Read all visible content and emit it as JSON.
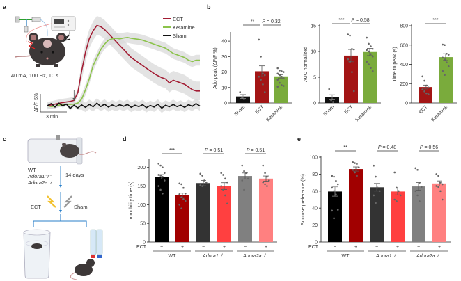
{
  "panels": {
    "a": {
      "letter": "a",
      "stim_label": "40 mA, 100 Hz, 10 s",
      "scale_y_label": "ΔF/F 5%",
      "scale_x_label": "3 min",
      "legend": [
        {
          "name": "ECT",
          "color": "#a31c33"
        },
        {
          "name": "Ketamine",
          "color": "#8bc34a"
        },
        {
          "name": "Sham",
          "color": "#111111"
        }
      ]
    },
    "b": {
      "letter": "b"
    },
    "c": {
      "letter": "c",
      "genotypes": [
        "WT",
        "Adora1⁻/⁻",
        "Adora2a⁻/⁻"
      ],
      "duration": "14 days",
      "ect_label": "ECT",
      "sham_label": "Sham"
    },
    "d": {
      "letter": "d"
    },
    "e": {
      "letter": "e"
    }
  },
  "chart_data": [
    {
      "id": "a",
      "type": "line",
      "title": "",
      "xlabel": "3 min (scale bar)",
      "ylabel": "ΔF/F 5% (scale bar)",
      "stimulus_marker": "arrow at stimulation onset",
      "series": [
        {
          "name": "ECT",
          "color": "#a31c33",
          "y": [
            0,
            0.3,
            0.6,
            0.9,
            1.2,
            1.4,
            1.6,
            2,
            5,
            13,
            20,
            25,
            28,
            30,
            29.5,
            28.5,
            27,
            25.5,
            24,
            22.5,
            21,
            19.5,
            18,
            17,
            16,
            15,
            14,
            13,
            12,
            11.2,
            10.5,
            10,
            8.5,
            9.5,
            9,
            8.5,
            8,
            7,
            6,
            5.5,
            5.5
          ]
        },
        {
          "name": "Ketamine",
          "color": "#8bc34a",
          "y": [
            0,
            -0.3,
            -0.2,
            0.2,
            0.5,
            0.6,
            0.5,
            0.6,
            1,
            2.5,
            6,
            10,
            15,
            18,
            21,
            23,
            24.5,
            25,
            25.2,
            25,
            25.3,
            25.5,
            25.2,
            25,
            24.8,
            24.5,
            24,
            23.5,
            23,
            22.5,
            22,
            21.5,
            20.5,
            19.5,
            19,
            18.5,
            18,
            17,
            16.5,
            17,
            17
          ]
        },
        {
          "name": "Sham",
          "color": "#111111",
          "y": [
            0,
            0.8,
            -0.5,
            1,
            0,
            0.6,
            -1,
            0.2,
            -0.8,
            0.3,
            -0.6,
            0.5,
            -0.4,
            1,
            -0.3,
            0.6,
            -0.5,
            0.3,
            -0.3,
            0.4,
            -0.2,
            0.5,
            -0.6,
            0.2,
            -0.3,
            0.4,
            -0.7,
            0.1,
            -0.5,
            0.6,
            -0.9,
            0.2,
            -0.4,
            0.5,
            -0.3,
            0.2,
            -0.6,
            0.4,
            -0.2,
            0.8,
            -0.1
          ]
        }
      ]
    },
    {
      "id": "b1",
      "type": "bar",
      "ylabel": "Ado peak (ΔF/F %)",
      "ylim": [
        0,
        45
      ],
      "yticks": [
        0,
        10,
        20,
        30,
        40
      ],
      "categories": [
        "Sham",
        "ECT",
        "Ketamine"
      ],
      "colors": [
        "#111111",
        "#a31515",
        "#7aab3c"
      ],
      "values": [
        4.2,
        20.5,
        17.2
      ],
      "sem": [
        1.3,
        3.5,
        1.1
      ],
      "points": [
        [
          7,
          3.5,
          2.5
        ],
        [
          41,
          30,
          19,
          18,
          17,
          15,
          12,
          7
        ],
        [
          22.5,
          21,
          20.5,
          20,
          19,
          18,
          17,
          16,
          15,
          13,
          11.5,
          11,
          10.5
        ]
      ],
      "significance": [
        {
          "pair": [
            "Sham",
            "ECT"
          ],
          "label": "**"
        },
        {
          "pair": [
            "ECT",
            "Ketamine"
          ],
          "label": "P = 0.32"
        }
      ]
    },
    {
      "id": "b2",
      "type": "bar",
      "ylabel": "AUC normalized",
      "ylim": [
        0,
        15
      ],
      "yticks": [
        0,
        5,
        10,
        15
      ],
      "categories": [
        "Sham",
        "ECT",
        "Ketamine"
      ],
      "colors": [
        "#111111",
        "#a31515",
        "#7aab3c"
      ],
      "values": [
        1.1,
        9.2,
        9.9
      ],
      "sem": [
        0.5,
        1.2,
        0.7
      ],
      "points": [
        [
          2.7,
          0.5,
          0.2
        ],
        [
          13.3,
          13.1,
          10.5,
          10.4,
          8.5,
          8,
          6,
          2.3
        ],
        [
          12.7,
          11.5,
          11,
          10.5,
          10.3,
          10,
          9.5,
          9,
          8,
          7.5,
          6.8,
          6.2
        ]
      ],
      "significance": [
        {
          "pair": [
            "Sham",
            "ECT"
          ],
          "label": "***"
        },
        {
          "pair": [
            "ECT",
            "Ketamine"
          ],
          "label": "P = 0.58"
        }
      ]
    },
    {
      "id": "b3",
      "type": "bar",
      "ylabel": "Time to peak (s)",
      "ylim": [
        0,
        800
      ],
      "yticks": [
        0,
        200,
        400,
        600,
        800
      ],
      "categories": [
        "ECT",
        "Ketamine"
      ],
      "colors": [
        "#a31515",
        "#7aab3c"
      ],
      "values": [
        165,
        475
      ],
      "sem": [
        20,
        35
      ],
      "points": [
        [
          275,
          230,
          180,
          160,
          140,
          120,
          100,
          90
        ],
        [
          605,
          600,
          510,
          500,
          470,
          450,
          420,
          380,
          330,
          290
        ]
      ],
      "significance": [
        {
          "pair": [
            "ECT",
            "Ketamine"
          ],
          "label": "***"
        }
      ]
    },
    {
      "id": "d",
      "type": "bar",
      "ylabel": "Immobility time (s)",
      "ylim": [
        0,
        220
      ],
      "yticks": [
        0,
        50,
        100,
        150,
        200
      ],
      "x_row_label": "ECT",
      "categories": [
        "−",
        "+",
        "−",
        "+",
        "−",
        "+"
      ],
      "groups": [
        "WT",
        "Adora1⁻/⁻",
        "Adora2a⁻/⁻"
      ],
      "colors": [
        "#000000",
        "#a10000",
        "#333333",
        "#ff4040",
        "#808080",
        "#ff8080"
      ],
      "values": [
        175,
        125,
        158,
        150,
        177,
        170
      ],
      "sem": [
        6,
        6,
        7,
        9,
        8,
        7
      ],
      "points": [
        [
          210,
          205,
          200,
          185,
          180,
          178,
          175,
          165,
          150,
          140,
          130
        ],
        [
          157,
          155,
          145,
          130,
          128,
          120,
          115,
          110,
          100,
          90
        ],
        [
          183,
          178,
          165,
          160,
          152,
          150
        ],
        [
          185,
          180,
          170,
          160,
          150,
          140,
          125,
          103
        ],
        [
          205,
          190,
          185,
          170,
          165,
          140
        ],
        [
          205,
          185,
          175,
          165,
          160,
          155,
          150
        ]
      ],
      "significance": [
        {
          "pair": [
            0,
            1
          ],
          "label": "***"
        },
        {
          "pair": [
            2,
            3
          ],
          "label": "P = 0.51"
        },
        {
          "pair": [
            4,
            5
          ],
          "label": "P = 0.51"
        }
      ]
    },
    {
      "id": "e",
      "type": "bar",
      "ylabel": "Sucrose preference (%)",
      "ylim": [
        0,
        100
      ],
      "yticks": [
        0,
        20,
        40,
        60,
        80,
        100
      ],
      "x_row_label": "ECT",
      "categories": [
        "−",
        "+",
        "−",
        "+",
        "−",
        "+"
      ],
      "groups": [
        "WT",
        "Adora1⁻/⁻",
        "Adora2a⁻/⁻"
      ],
      "colors": [
        "#000000",
        "#a10000",
        "#333333",
        "#ff4040",
        "#808080",
        "#ff8080"
      ],
      "values": [
        59.5,
        86,
        64.5,
        59.5,
        65.5,
        69
      ],
      "sem": [
        5.5,
        2.5,
        4.5,
        4,
        4.5,
        3
      ],
      "points": [
        [
          78,
          77,
          72,
          68,
          64,
          60,
          56,
          38,
          37,
          28
        ],
        [
          94,
          93,
          92,
          88,
          85,
          82,
          78
        ],
        [
          90,
          77,
          64,
          60,
          55,
          46
        ],
        [
          82,
          64,
          60,
          55,
          50,
          48
        ],
        [
          87,
          85,
          70,
          65,
          60,
          55,
          48
        ],
        [
          80,
          78,
          70,
          68,
          66,
          65,
          60,
          50
        ]
      ],
      "significance": [
        {
          "pair": [
            0,
            1
          ],
          "label": "**"
        },
        {
          "pair": [
            2,
            3
          ],
          "label": "P = 0.48"
        },
        {
          "pair": [
            4,
            5
          ],
          "label": "P = 0.56"
        }
      ]
    }
  ]
}
